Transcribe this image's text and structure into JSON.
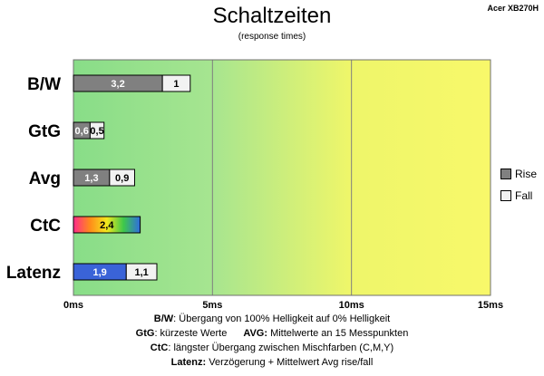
{
  "corner_label": "Acer XB270H",
  "chart_data": {
    "type": "bar",
    "orientation": "horizontal",
    "stacked": true,
    "title": "Schaltzeiten",
    "subtitle": "(response times)",
    "categories": [
      "B/W",
      "GtG",
      "Avg",
      "CtC",
      "Latenz"
    ],
    "series": [
      {
        "name": "Rise",
        "values": [
          3.2,
          0.6,
          1.3,
          2.4,
          1.9
        ],
        "labels": [
          "3,2",
          "0,6",
          "1,3",
          "2,4",
          "1,9"
        ]
      },
      {
        "name": "Fall",
        "values": [
          1.0,
          0.5,
          0.9,
          null,
          1.1
        ],
        "labels": [
          "1",
          "0,5",
          "0,9",
          "",
          "1,1"
        ]
      }
    ],
    "bar_colors": {
      "Rise": "#808080",
      "Fall": "#f2f2f2",
      "CtC": "gradient",
      "Latenz": "#3a63d8"
    },
    "xlim": [
      0,
      15
    ],
    "xticks": [
      "0ms",
      "5ms",
      "10ms",
      "15ms"
    ],
    "xtick_values": [
      0,
      5,
      10,
      15
    ],
    "grid": true,
    "background_zones": [
      "#88dd88",
      "#d8f060",
      "#f8f86a"
    ],
    "legend": [
      "Rise",
      "Fall"
    ],
    "legend_position": "right"
  },
  "footnotes": {
    "line1": {
      "key": "B/W",
      "text": ":  Übergang von 100% Helligkeit auf 0% Helligkeit"
    },
    "line2a": {
      "key": "GtG",
      "text": ": kürzeste  Werte"
    },
    "line2b": {
      "key": "AVG:",
      "text": " Mittelwerte  an 15 Messpunkten"
    },
    "line3": {
      "key": "CtC",
      "text": ": längster Übergang  zwischen Mischfarben  (C,M,Y)"
    },
    "line4": {
      "key": "Latenz:",
      "text": " Verzögerung  + Mittelwert  Avg rise/fall"
    }
  }
}
